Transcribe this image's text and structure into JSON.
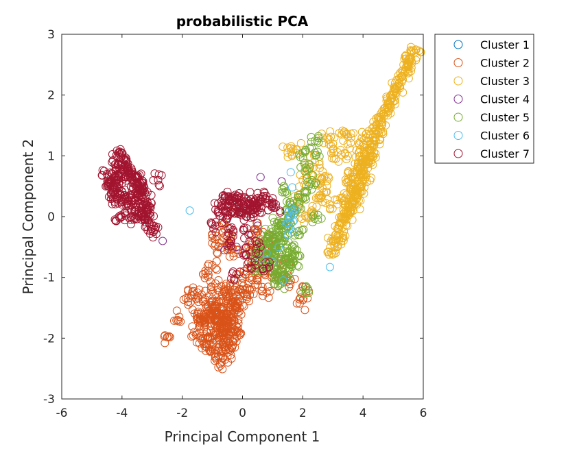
{
  "chart_data": {
    "type": "scatter",
    "title": "probabilistic PCA",
    "xlabel": "Principal Component 1",
    "ylabel": "Principal Component 2",
    "xlim": [
      -6,
      6
    ],
    "ylim": [
      -3,
      3
    ],
    "xticks": [
      "-6",
      "-4",
      "-2",
      "0",
      "2",
      "4",
      "6"
    ],
    "yticks": [
      "-3",
      "-2",
      "-1",
      "0",
      "1",
      "2",
      "3"
    ],
    "grid": false,
    "legend_position": "outside-top-right",
    "marker": "open-circle",
    "series": [
      {
        "name": "Cluster 1",
        "color": "#0072BD",
        "x": [
          1.62
        ],
        "y": [
          0.05
        ]
      },
      {
        "name": "Cluster 2",
        "color": "#D95319",
        "x": [
          -0.9,
          -1.2,
          -0.5,
          -0.7,
          -1.0,
          -0.3,
          -0.8,
          -1.3,
          -0.6,
          -0.4,
          -1.1,
          -0.2,
          -0.9,
          -0.5,
          -1.4,
          -0.7,
          0.0,
          -0.3,
          -1.0,
          -0.6,
          -0.8,
          -1.2,
          -0.1,
          -0.4,
          -0.9,
          -0.5,
          -1.5,
          -0.7,
          0.2,
          -0.2,
          -1.1,
          -0.6,
          -0.3,
          -0.9,
          -1.3,
          -0.8,
          -0.5,
          0.1,
          -0.4,
          -1.0,
          -0.7,
          -1.6,
          -0.2,
          -0.6,
          -1.2,
          0.3,
          -0.9,
          -0.4,
          -0.8,
          -1.1,
          -0.3,
          -0.5,
          -0.7,
          -1.4,
          0.0,
          -0.6,
          -1.0,
          -0.2,
          -0.9,
          -0.4,
          -2.5,
          -2.1,
          -1.8,
          -1.5,
          0.5,
          0.8,
          1.2,
          1.6,
          1.9,
          2.1,
          0.9,
          0.4,
          0.6,
          -0.5,
          -0.8,
          -1.0,
          -0.6,
          -0.3,
          0.2,
          0.7,
          1.0,
          1.4,
          -1.7,
          -1.3,
          -0.2,
          0.4,
          -1.0,
          0.3,
          -0.9,
          -0.5
        ],
        "y": [
          -1.7,
          -1.9,
          -1.6,
          -1.8,
          -1.5,
          -1.4,
          -2.0,
          -1.7,
          -1.9,
          -1.5,
          -2.1,
          -1.3,
          -1.6,
          -1.8,
          -1.8,
          -2.2,
          -1.2,
          -1.7,
          -1.4,
          -2.0,
          -1.6,
          -2.1,
          -1.5,
          -1.9,
          -1.8,
          -2.3,
          -1.6,
          -1.4,
          -1.1,
          -1.8,
          -1.7,
          -1.6,
          -2.0,
          -2.2,
          -1.4,
          -1.9,
          -1.3,
          -1.3,
          -1.6,
          -2.0,
          -1.7,
          -1.9,
          -1.5,
          -2.1,
          -1.6,
          -1.2,
          -1.5,
          -2.2,
          -1.8,
          -1.3,
          -1.4,
          -1.7,
          -2.4,
          -2.0,
          -1.0,
          -1.2,
          -1.6,
          -1.9,
          -2.3,
          -1.1,
          -1.98,
          -1.65,
          -1.45,
          -1.25,
          -1.05,
          -1.25,
          -1.05,
          -1.05,
          -1.43,
          -1.25,
          -0.9,
          -0.6,
          -0.3,
          -0.4,
          -0.5,
          -0.8,
          -0.2,
          -0.6,
          -0.5,
          -0.7,
          -0.4,
          -0.7,
          -1.3,
          -0.95,
          0.15,
          -0.2,
          -0.35,
          -0.85,
          -1.1,
          -0.55
        ]
      },
      {
        "name": "Cluster 3",
        "color": "#EDB120",
        "x": [
          3.8,
          3.9,
          4.0,
          3.7,
          4.1,
          3.6,
          4.2,
          3.5,
          4.3,
          3.4,
          4.4,
          3.3,
          3.95,
          3.85,
          4.05,
          3.75,
          4.15,
          3.65,
          4.25,
          3.55,
          4.35,
          3.45,
          3.2,
          3.1,
          3.0,
          4.5,
          4.45,
          3.9,
          4.0,
          3.8,
          3.7,
          3.6,
          3.5,
          3.4,
          3.3,
          4.1,
          4.2,
          3.9,
          4.0,
          4.1,
          4.3,
          3.6,
          3.8,
          4.6,
          4.7,
          4.8,
          4.9,
          5.0,
          5.1,
          5.2,
          5.3,
          5.4,
          5.5,
          5.6,
          5.7,
          5.75,
          5.55,
          5.35,
          5.15,
          4.95,
          4.75,
          4.55,
          2.9,
          2.7,
          2.5,
          2.3,
          2.1,
          1.5,
          1.8,
          2.0,
          2.4,
          2.8,
          3.0,
          3.3,
          3.6,
          2.6,
          2.2,
          1.9,
          2.7,
          3.1,
          3.4,
          2.95,
          3.15,
          3.35
        ],
        "y": [
          0.7,
          0.8,
          0.9,
          0.5,
          1.0,
          0.3,
          1.1,
          0.1,
          1.2,
          0.0,
          1.3,
          -0.1,
          0.75,
          0.6,
          0.85,
          0.45,
          0.95,
          0.25,
          1.05,
          0.15,
          1.15,
          -0.05,
          -0.2,
          -0.3,
          -0.4,
          1.4,
          1.5,
          0.4,
          0.6,
          0.2,
          0.35,
          0.55,
          0.05,
          0.2,
          0.3,
          0.7,
          0.9,
          1.0,
          1.2,
          1.3,
          1.45,
          0.65,
          0.45,
          1.6,
          1.7,
          1.8,
          1.9,
          2.0,
          2.1,
          2.2,
          2.3,
          2.4,
          2.5,
          2.6,
          2.7,
          2.75,
          2.55,
          2.35,
          2.15,
          1.95,
          1.75,
          1.55,
          0.2,
          0.4,
          0.3,
          0.1,
          0.0,
          1.05,
          1.1,
          0.6,
          0.9,
          1.3,
          1.2,
          1.35,
          1.3,
          0.55,
          0.75,
          0.25,
          0.65,
          0.95,
          1.05,
          -0.6,
          -0.5,
          -0.35
        ]
      },
      {
        "name": "Cluster 4",
        "color": "#7E2F8E",
        "x": [
          -2.65,
          0.6,
          1.3,
          -0.2,
          0.3,
          -0.6,
          1.0,
          0.5
        ],
        "y": [
          -0.4,
          0.65,
          0.58,
          -0.5,
          -0.3,
          -0.55,
          0.2,
          -0.15
        ]
      },
      {
        "name": "Cluster 5",
        "color": "#77AC30",
        "x": [
          1.2,
          1.0,
          1.4,
          0.8,
          1.6,
          0.9,
          1.3,
          1.1,
          1.5,
          0.7,
          1.7,
          1.25,
          1.05,
          1.45,
          0.85,
          1.65,
          1.15,
          1.35,
          0.95,
          1.55,
          0.75,
          1.2,
          1.0,
          1.4,
          0.6,
          1.8,
          2.0,
          2.2,
          2.4,
          1.9,
          2.1,
          2.3,
          1.3,
          1.6,
          0.9,
          1.1,
          1.5,
          2.4,
          2.0,
          1.7,
          1.4,
          1.2,
          0.5,
          0.4,
          1.0,
          1.3,
          2.1,
          2.5,
          1.8,
          1.6
        ],
        "y": [
          -0.6,
          -0.5,
          -0.7,
          -0.4,
          -0.8,
          -0.3,
          -0.9,
          -0.55,
          -0.65,
          -0.45,
          -0.75,
          -0.35,
          -0.85,
          -0.2,
          -0.6,
          -0.5,
          -0.1,
          -0.4,
          -0.7,
          0.0,
          -0.8,
          -1.0,
          -0.25,
          -0.95,
          -0.5,
          0.1,
          0.3,
          0.5,
          1.05,
          -0.3,
          0.8,
          0.6,
          -0.2,
          0.2,
          -0.65,
          -0.3,
          -0.15,
          1.25,
          1.05,
          0.15,
          0.4,
          -1.05,
          -0.85,
          -0.7,
          -0.9,
          -1.1,
          -1.25,
          -0.05,
          -0.55,
          -0.75
        ]
      },
      {
        "name": "Cluster 6",
        "color": "#4DBEEE",
        "x": [
          1.6,
          1.65,
          1.55,
          1.7,
          1.5,
          1.62,
          1.58,
          1.68,
          1.52,
          1.75,
          1.45,
          1.6,
          -1.75,
          2.9,
          1.65,
          1.55,
          1.7,
          1.5,
          0.8,
          0.6,
          1.0,
          1.2,
          1.35
        ],
        "y": [
          0.0,
          0.1,
          -0.05,
          0.05,
          -0.1,
          0.15,
          0.0,
          -0.08,
          0.08,
          0.12,
          -0.12,
          0.73,
          0.1,
          -0.83,
          0.48,
          -0.2,
          -0.25,
          -0.3,
          -0.6,
          -0.7,
          -0.75,
          -0.5,
          -1.05
        ]
      },
      {
        "name": "Cluster 7",
        "color": "#A2142F",
        "x": [
          -4.2,
          -4.0,
          -4.3,
          -3.9,
          -4.1,
          -4.4,
          -3.8,
          -4.05,
          -4.25,
          -3.95,
          -4.15,
          -4.35,
          -3.85,
          -4.2,
          -4.0,
          -3.7,
          -3.6,
          -3.5,
          -3.4,
          -3.3,
          -3.2,
          -3.15,
          -3.25,
          -3.35,
          -3.45,
          -3.55,
          -3.65,
          -3.75,
          -3.1,
          -3.0,
          -3.3,
          -3.4,
          -3.2,
          -3.5,
          -4.5,
          -4.45,
          -4.1,
          -3.9,
          -4.0,
          -4.3,
          -4.2,
          -3.8,
          -3.6,
          -3.4,
          -3.2,
          -2.8,
          -3.05,
          -2.95,
          -3.6,
          -4.1,
          -3.9,
          -3.7,
          -0.5,
          -0.3,
          -0.1,
          0.1,
          0.3,
          0.5,
          -0.7,
          -0.4,
          -0.2,
          0.0,
          0.2,
          0.4,
          -0.6,
          -0.8,
          0.6,
          -0.45,
          -0.25,
          -0.05,
          0.15,
          0.35,
          0.55,
          -0.65,
          0.75,
          0.9,
          1.1,
          -0.9,
          -0.4,
          0.0,
          0.3,
          0.6,
          -0.2,
          0.2,
          0.8,
          -0.3
        ],
        "y": [
          0.6,
          0.7,
          0.5,
          0.8,
          0.65,
          0.55,
          0.75,
          0.85,
          0.45,
          0.95,
          0.4,
          0.6,
          0.9,
          1.0,
          1.05,
          0.7,
          0.6,
          0.5,
          0.4,
          0.3,
          0.2,
          0.1,
          0.0,
          -0.05,
          0.05,
          0.15,
          0.25,
          0.35,
          -0.1,
          -0.2,
          0.45,
          0.55,
          0.35,
          0.65,
          0.7,
          0.5,
          0.3,
          0.35,
          0.2,
          0.3,
          0.8,
          0.65,
          0.55,
          0.45,
          0.15,
          0.6,
          0.15,
          -0.25,
          -0.05,
          0.0,
          0.05,
          0.2,
          0.2,
          0.25,
          0.15,
          0.3,
          0.2,
          0.1,
          0.25,
          0.05,
          0.3,
          0.1,
          0.22,
          0.15,
          0.18,
          0.12,
          0.28,
          0.32,
          0.28,
          0.08,
          0.05,
          0.18,
          0.25,
          0.0,
          0.3,
          0.2,
          0.15,
          -0.15,
          -0.4,
          -0.6,
          -0.75,
          -0.5,
          -0.95,
          -0.3,
          -0.85,
          -0.25
        ]
      }
    ]
  }
}
